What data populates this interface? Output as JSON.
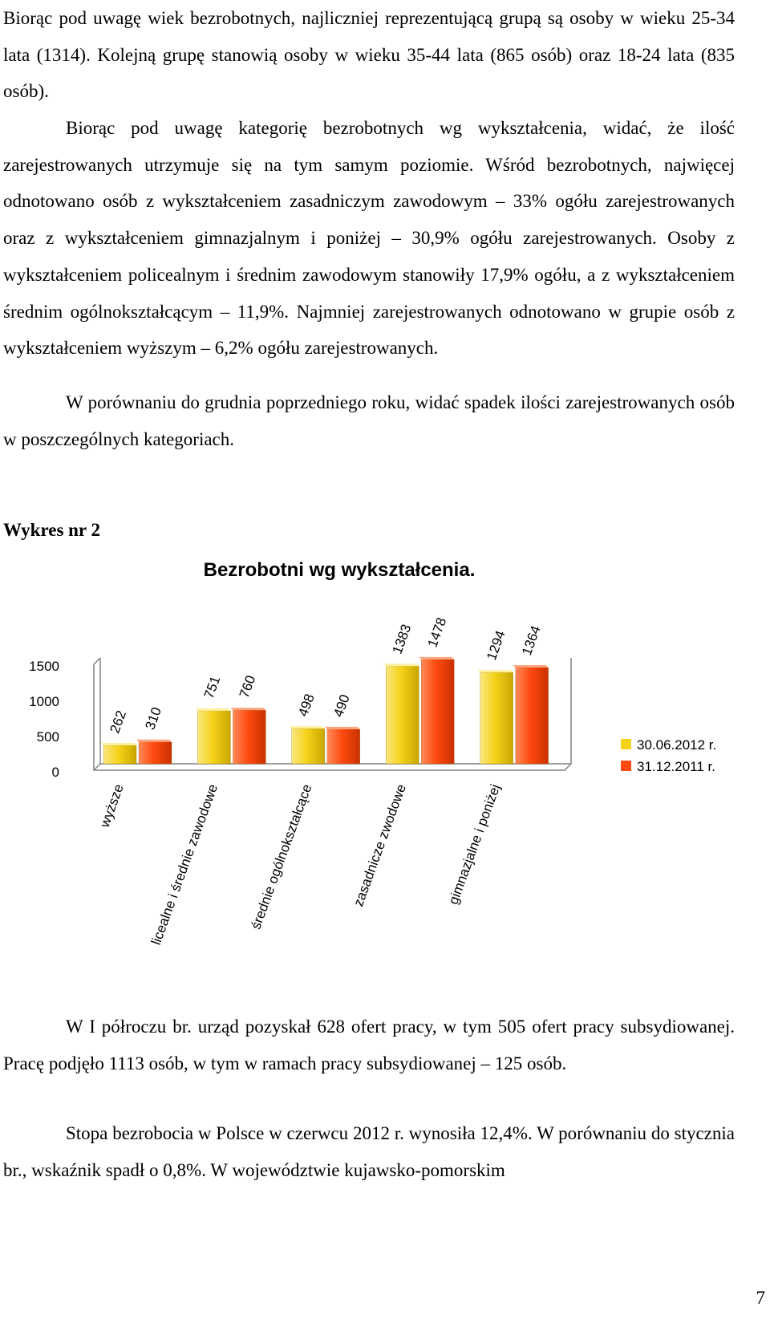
{
  "paragraphs": [
    "Biorąc pod uwagę wiek bezrobotnych, najliczniej reprezentującą grupą są osoby w wieku 25-34 lata (1314). Kolejną grupę stanowią osoby w wieku 35-44 lata (865 osób) oraz 18-24 lata (835 osób).",
    "Biorąc pod uwagę kategorię bezrobotnych wg wykształcenia, widać, że ilość zarejestrowanych utrzymuje się na tym samym poziomie. Wśród bezrobotnych, najwięcej odnotowano osób z wykształceniem zasadniczym zawodowym – 33% ogółu zarejestrowanych oraz z wykształceniem gimnazjalnym i poniżej – 30,9% ogółu zarejestrowanych. Osoby z wykształceniem policealnym i średnim zawodowym stanowiły 17,9% ogółu, a z wykształceniem średnim ogólnokształcącym – 11,9%. Najmniej zarejestrowanych odnotowano w grupie osób z wykształceniem wyższym – 6,2% ogółu zarejestrowanych.",
    "W porównaniu do grudnia poprzedniego roku, widać spadek ilości zarejestrowanych osób w poszczególnych kategoriach.",
    "W I półroczu br. urząd pozyskał 628 ofert pracy, w tym 505 ofert pracy subsydiowanej. Pracę podjęło 1113 osób, w tym w ramach pracy subsydiowanej – 125 osób.",
    "Stopa bezrobocia w Polsce w czerwcu 2012 r. wynosiła 12,4%. W porównaniu do stycznia br., wskaźnik spadł o 0,8%. W województwie kujawsko-pomorskim"
  ],
  "chart_heading": "Wykres nr 2",
  "page_number": "7",
  "chart_data": {
    "type": "bar",
    "title": "Bezrobotni wg wykształcenia.",
    "categories": [
      "wyższe",
      "licealne i średnie zawodowe",
      "średnie ogólnokształcące",
      "zasadnicze zwodowe",
      "gimnazjalne i poniżej"
    ],
    "series": [
      {
        "name": "30.06.2012 r.",
        "values": [
          262,
          751,
          498,
          1383,
          1294
        ],
        "color": "#f5d31a"
      },
      {
        "name": "31.12.2011 r.",
        "values": [
          310,
          760,
          490,
          1478,
          1364
        ],
        "color": "#ff4a10"
      }
    ],
    "yticks": [
      0,
      500,
      1000,
      1500
    ],
    "ylim": [
      0,
      1500
    ],
    "grid": false,
    "legend_position": "right",
    "data_labels": true
  }
}
